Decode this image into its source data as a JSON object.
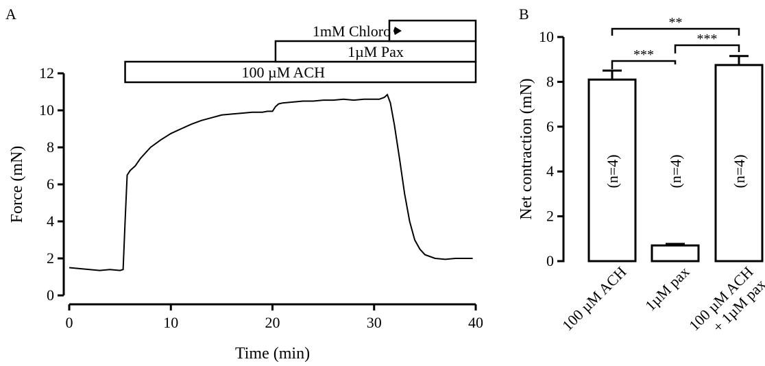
{
  "figure": {
    "panel_a_label": "A",
    "panel_b_label": "B"
  },
  "chart_data": [
    {
      "type": "line",
      "title": "",
      "xlabel": "Time (min)",
      "ylabel": "Force (mN)",
      "xlim": [
        0,
        40
      ],
      "ylim": [
        0,
        12
      ],
      "xticks": [
        0,
        10,
        20,
        30,
        40
      ],
      "yticks": [
        0,
        2,
        4,
        6,
        8,
        10,
        12
      ],
      "series": [
        {
          "x": [
            0,
            1,
            2,
            3,
            4,
            5,
            5.3,
            5.5,
            5.7,
            6,
            6.5,
            7,
            8,
            9,
            10,
            11,
            12,
            13,
            14,
            15,
            16,
            17,
            18,
            19,
            19.5,
            20,
            20.3,
            20.6,
            21,
            22,
            23,
            24,
            25,
            26,
            27,
            28,
            29,
            30,
            30.5,
            31,
            31.3,
            31.6,
            32,
            32.5,
            33,
            33.5,
            34,
            34.5,
            35,
            36,
            37,
            38,
            39,
            39.7
          ],
          "y": [
            1.5,
            1.45,
            1.4,
            1.35,
            1.4,
            1.35,
            1.4,
            4.0,
            6.5,
            6.75,
            7.0,
            7.4,
            8.0,
            8.4,
            8.75,
            9.0,
            9.25,
            9.45,
            9.6,
            9.75,
            9.8,
            9.85,
            9.9,
            9.9,
            9.95,
            9.95,
            10.2,
            10.35,
            10.4,
            10.45,
            10.5,
            10.5,
            10.55,
            10.55,
            10.6,
            10.55,
            10.6,
            10.6,
            10.6,
            10.7,
            10.85,
            10.4,
            9.2,
            7.4,
            5.5,
            4.0,
            3.0,
            2.5,
            2.2,
            2.0,
            1.95,
            2.0,
            2.0,
            2.0
          ]
        }
      ],
      "treatments": [
        {
          "label": "100 µM ACH",
          "start": 5.5,
          "end": 40
        },
        {
          "label": "1µM Pax",
          "start": 20.3,
          "end": 40
        },
        {
          "label": "1mM Chloro",
          "start": 31.5,
          "end": 40
        }
      ]
    },
    {
      "type": "bar",
      "title": "",
      "xlabel": "",
      "ylabel": "Net contraction (mN)",
      "ylim": [
        0,
        10
      ],
      "yticks": [
        0,
        2,
        4,
        6,
        8,
        10
      ],
      "categories": [
        "100 µM ACH",
        "1µM pax",
        "100 µM ACH + 1µM pax"
      ],
      "category_lines": [
        [
          "100 µM ACH"
        ],
        [
          "1µM pax"
        ],
        [
          "100 µM ACH",
          "+ 1µM pax"
        ]
      ],
      "values": [
        8.1,
        0.7,
        8.75
      ],
      "errors": [
        0.4,
        0.07,
        0.4
      ],
      "n_labels": [
        "(n=4)",
        "(n=4)",
        "(n=4)"
      ],
      "significance": [
        {
          "a": 0,
          "b": 1,
          "label": "***"
        },
        {
          "a": 1,
          "b": 2,
          "label": "***"
        },
        {
          "a": 0,
          "b": 2,
          "label": "**"
        }
      ]
    }
  ]
}
